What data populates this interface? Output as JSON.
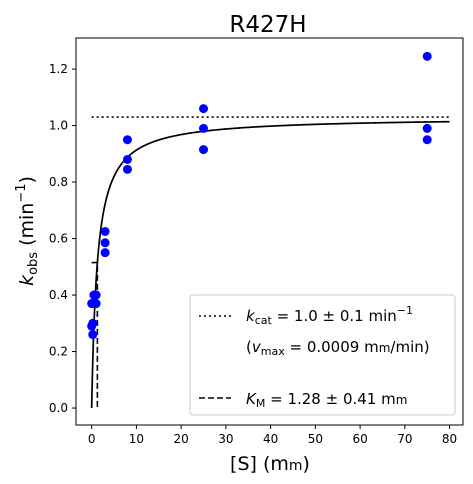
{
  "chart_data": {
    "type": "scatter",
    "title": "R427H",
    "xlabel": {
      "main": "[S] (m",
      "smallcaps": "m",
      "tail": ")"
    },
    "ylabel": {
      "k": "k",
      "sub": "obs",
      "unit": "(min",
      "sup": "−1",
      "close": ")"
    },
    "xlim": [
      -3.5,
      83
    ],
    "ylim": [
      -0.06,
      1.31
    ],
    "xticks": [
      0,
      10,
      20,
      30,
      40,
      50,
      60,
      70,
      80
    ],
    "yticks": [
      0.0,
      0.2,
      0.4,
      0.6,
      0.8,
      1.0,
      1.2
    ],
    "ytick_labels": [
      "0.0",
      "0.2",
      "0.4",
      "0.6",
      "0.8",
      "1.0",
      "1.2"
    ],
    "grid": false,
    "points": [
      {
        "x": 0.0,
        "y": 0.29
      },
      {
        "x": 0.0,
        "y": 0.37
      },
      {
        "x": 0.25,
        "y": 0.26
      },
      {
        "x": 0.25,
        "y": 0.3
      },
      {
        "x": 0.5,
        "y": 0.37
      },
      {
        "x": 0.5,
        "y": 0.4
      },
      {
        "x": 1.0,
        "y": 0.37
      },
      {
        "x": 1.0,
        "y": 0.4
      },
      {
        "x": 3.0,
        "y": 0.55
      },
      {
        "x": 3.0,
        "y": 0.585
      },
      {
        "x": 3.0,
        "y": 0.625
      },
      {
        "x": 8.0,
        "y": 0.845
      },
      {
        "x": 8.0,
        "y": 0.88
      },
      {
        "x": 8.0,
        "y": 0.95
      },
      {
        "x": 25.0,
        "y": 0.915
      },
      {
        "x": 25.0,
        "y": 0.99
      },
      {
        "x": 25.0,
        "y": 1.06
      },
      {
        "x": 75.0,
        "y": 0.95
      },
      {
        "x": 75.0,
        "y": 0.99
      },
      {
        "x": 75.0,
        "y": 1.245
      }
    ],
    "point_color": "#0000ff",
    "fit": {
      "kcat": 1.03,
      "km": 1.28,
      "x_range": [
        0,
        80
      ]
    },
    "kcat_line": {
      "y": 1.03,
      "x_range": [
        0,
        80
      ]
    },
    "km_marker": {
      "x": 1.28,
      "y_top": 0.515,
      "x_start": 0
    },
    "legend": {
      "position": "lower-right",
      "entries": [
        {
          "style": "dotted",
          "k": "k",
          "sub": "cat",
          "text": " = 1.0 ± 0.1 min",
          "sup": "−1"
        },
        {
          "style": "none",
          "pre": "(",
          "v": "v",
          "sub": "max",
          "text": " = 0.0009 m",
          "smallcaps": "m",
          "tail": "/min)"
        },
        {
          "style": "dashed",
          "k": "K",
          "sub": "M",
          "text": " = 1.28 ± 0.41 m",
          "smallcaps": "m"
        }
      ]
    }
  }
}
